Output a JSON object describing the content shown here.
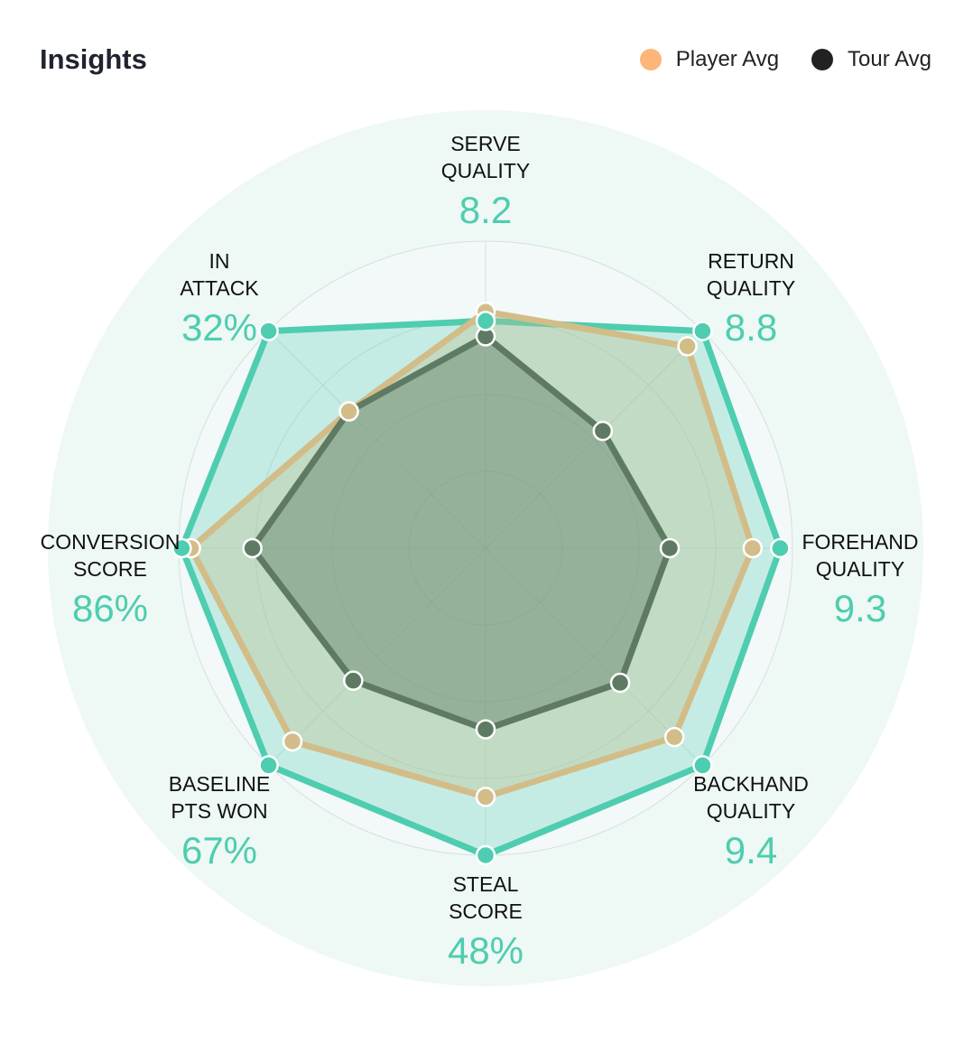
{
  "header": {
    "title": "Insights"
  },
  "legend": [
    {
      "label": "Player Avg",
      "color": "#fdb57a"
    },
    {
      "label": "Tour Avg",
      "color": "#222222"
    }
  ],
  "chart_data": {
    "type": "radar",
    "title": "Insights",
    "axes": [
      {
        "line1": "SERVE",
        "line2": "QUALITY",
        "value": "8.2"
      },
      {
        "line1": "RETURN",
        "line2": "QUALITY",
        "value": "8.8"
      },
      {
        "line1": "FOREHAND",
        "line2": "QUALITY",
        "value": "9.3"
      },
      {
        "line1": "BACKHAND",
        "line2": "QUALITY",
        "value": "9.4"
      },
      {
        "line1": "STEAL",
        "line2": "SCORE",
        "value": "48%"
      },
      {
        "line1": "BASELINE",
        "line2": "PTS WON",
        "value": "67%"
      },
      {
        "line1": "CONVERSION",
        "line2": "SCORE",
        "value": "86%"
      },
      {
        "line1": "IN",
        "line2": "ATTACK",
        "value": "32%"
      }
    ],
    "range": [
      0,
      1
    ],
    "series": [
      {
        "name": "Player",
        "color": "#4ecdb0",
        "values": [
          0.74,
          1.0,
          0.96,
          1.0,
          1.0,
          1.0,
          0.99,
          1.0
        ]
      },
      {
        "name": "Player Avg",
        "color": "#d2bd88",
        "values": [
          0.77,
          0.93,
          0.87,
          0.87,
          0.81,
          0.89,
          0.96,
          0.63
        ]
      },
      {
        "name": "Tour Avg",
        "color": "#5f7a62",
        "values": [
          0.69,
          0.54,
          0.6,
          0.62,
          0.59,
          0.61,
          0.76,
          0.63
        ]
      }
    ]
  }
}
